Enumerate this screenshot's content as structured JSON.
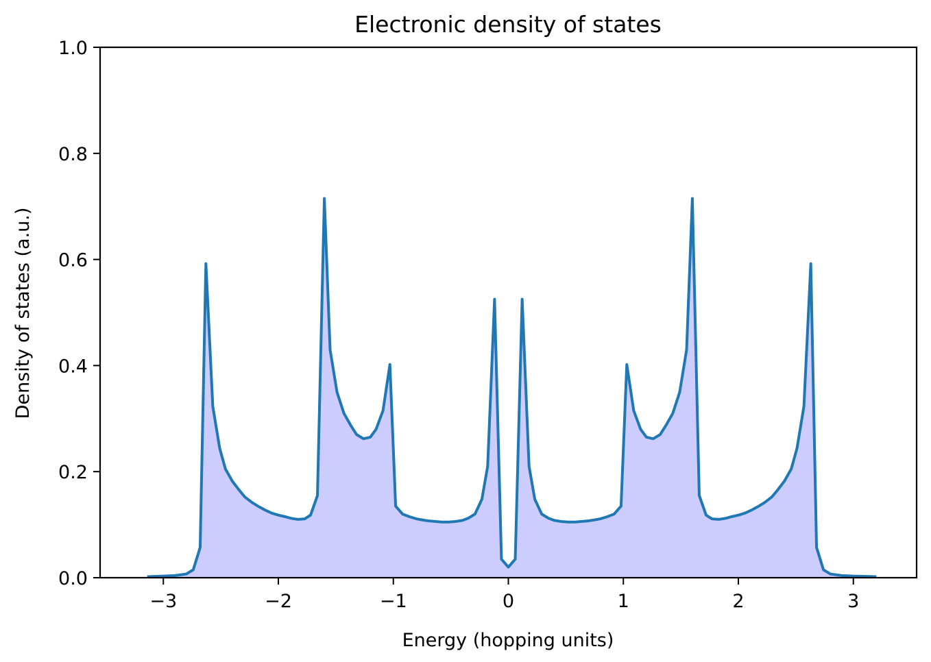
{
  "chart_data": {
    "type": "area",
    "title": "Electronic density of states",
    "xlabel": "Energy (hopping units)",
    "ylabel": "Density of states (a.u.)",
    "xlim": [
      -3.55,
      3.55
    ],
    "ylim": [
      0.0,
      1.0
    ],
    "xticks": [
      -3,
      -2,
      -1,
      0,
      1,
      2,
      3
    ],
    "xtick_labels": [
      "−3",
      "−2",
      "−1",
      "0",
      "1",
      "2",
      "3"
    ],
    "yticks": [
      0.0,
      0.2,
      0.4,
      0.6,
      0.8,
      1.0
    ],
    "ytick_labels": [
      "0.0",
      "0.2",
      "0.4",
      "0.6",
      "0.8",
      "1.0"
    ],
    "grid": false,
    "line_color": "#1f77b4",
    "fill_color": "#ccccff",
    "series": [
      {
        "x": [
          -3.14,
          -3.0,
          -2.9,
          -2.8,
          -2.74,
          -2.68,
          -2.63,
          -2.57,
          -2.51,
          -2.46,
          -2.4,
          -2.34,
          -2.29,
          -2.23,
          -2.17,
          -2.11,
          -2.06,
          -2.0,
          -1.94,
          -1.89,
          -1.83,
          -1.77,
          -1.72,
          -1.66,
          -1.6,
          -1.55,
          -1.49,
          -1.43,
          -1.37,
          -1.32,
          -1.26,
          -1.2,
          -1.15,
          -1.09,
          -1.03,
          -0.98,
          -0.92,
          -0.86,
          -0.8,
          -0.75,
          -0.69,
          -0.63,
          -0.58,
          -0.52,
          -0.46,
          -0.4,
          -0.35,
          -0.29,
          -0.23,
          -0.18,
          -0.12,
          -0.06,
          0.0,
          0.06,
          0.12,
          0.18,
          0.23,
          0.29,
          0.35,
          0.4,
          0.46,
          0.52,
          0.58,
          0.63,
          0.69,
          0.75,
          0.8,
          0.86,
          0.92,
          0.98,
          1.03,
          1.09,
          1.15,
          1.2,
          1.26,
          1.32,
          1.37,
          1.43,
          1.49,
          1.55,
          1.6,
          1.66,
          1.72,
          1.77,
          1.83,
          1.89,
          1.94,
          2.0,
          2.06,
          2.11,
          2.17,
          2.23,
          2.29,
          2.34,
          2.4,
          2.46,
          2.51,
          2.57,
          2.63,
          2.68,
          2.74,
          2.8,
          2.9,
          3.0,
          3.2
        ],
        "y": [
          0.002,
          0.003,
          0.004,
          0.007,
          0.015,
          0.057,
          0.592,
          0.323,
          0.244,
          0.205,
          0.182,
          0.165,
          0.152,
          0.142,
          0.134,
          0.127,
          0.122,
          0.118,
          0.115,
          0.112,
          0.11,
          0.111,
          0.118,
          0.155,
          0.715,
          0.43,
          0.35,
          0.31,
          0.287,
          0.27,
          0.262,
          0.265,
          0.28,
          0.315,
          0.402,
          0.135,
          0.12,
          0.115,
          0.111,
          0.109,
          0.107,
          0.106,
          0.105,
          0.105,
          0.106,
          0.108,
          0.112,
          0.12,
          0.148,
          0.21,
          0.525,
          0.035,
          0.02,
          0.035,
          0.525,
          0.21,
          0.148,
          0.12,
          0.112,
          0.108,
          0.106,
          0.105,
          0.105,
          0.106,
          0.107,
          0.109,
          0.111,
          0.115,
          0.12,
          0.135,
          0.402,
          0.315,
          0.28,
          0.265,
          0.262,
          0.27,
          0.287,
          0.31,
          0.35,
          0.43,
          0.715,
          0.155,
          0.118,
          0.111,
          0.11,
          0.112,
          0.115,
          0.118,
          0.122,
          0.127,
          0.134,
          0.142,
          0.152,
          0.165,
          0.182,
          0.205,
          0.244,
          0.323,
          0.592,
          0.057,
          0.015,
          0.007,
          0.004,
          0.003,
          0.002
        ]
      }
    ]
  }
}
